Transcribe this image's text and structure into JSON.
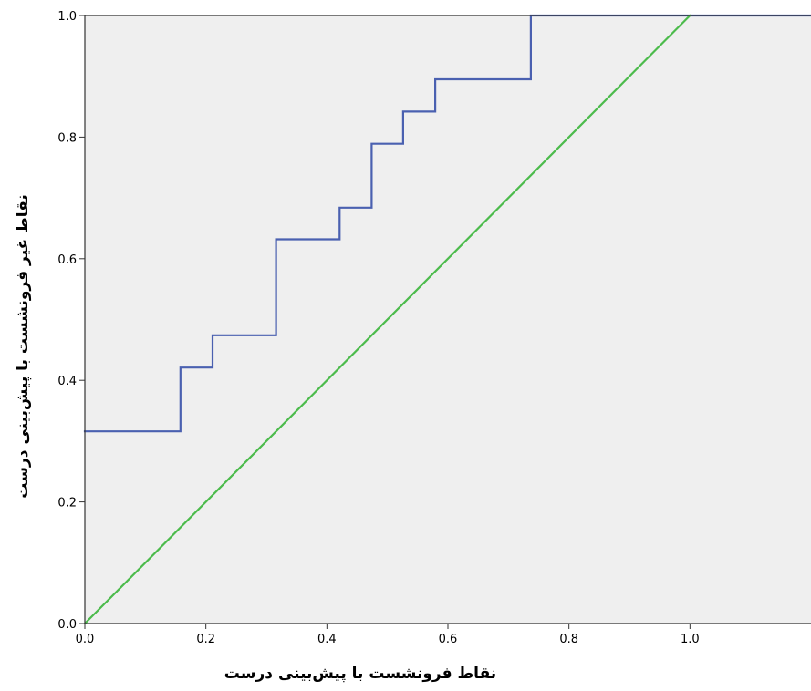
{
  "chart_data": {
    "type": "line",
    "xlabel": "نقاط فرونشست با پیش‌بینی درست",
    "ylabel": "نقاط غیر فرونشست با پیش‌بینی درست",
    "xlim": [
      0,
      1.2
    ],
    "ylim": [
      0,
      1.0
    ],
    "x_ticks": [
      "0.0",
      "0.2",
      "0.4",
      "0.6",
      "0.8",
      "1.0"
    ],
    "y_ticks": [
      "0.0",
      "0.2",
      "0.4",
      "0.6",
      "0.8",
      "1.0"
    ],
    "grid": false,
    "legend": "none",
    "plot_background": "#efefef",
    "series": [
      {
        "color": "#4a60b0",
        "step": true,
        "x": [
          0.0,
          0.158,
          0.158,
          0.211,
          0.211,
          0.316,
          0.316,
          0.421,
          0.421,
          0.474,
          0.474,
          0.526,
          0.526,
          0.579,
          0.579,
          0.737,
          0.737,
          1.2
        ],
        "y": [
          0.316,
          0.316,
          0.421,
          0.421,
          0.474,
          0.474,
          0.632,
          0.632,
          0.684,
          0.684,
          0.789,
          0.789,
          0.842,
          0.842,
          0.895,
          0.895,
          1.0,
          1.0
        ]
      },
      {
        "color": "#4cbb4c",
        "step": false,
        "x": [
          0.0,
          1.0
        ],
        "y": [
          0.0,
          1.0
        ]
      }
    ]
  }
}
